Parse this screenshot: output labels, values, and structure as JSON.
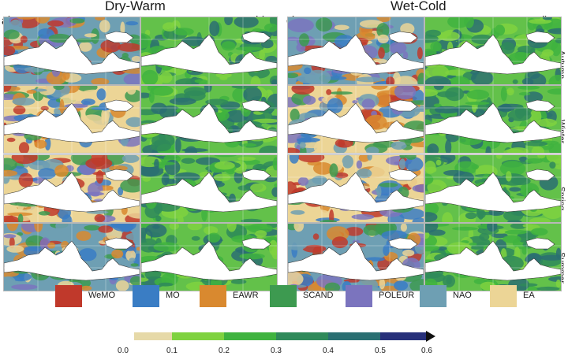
{
  "titles": {
    "left": "Dry-Warm",
    "right": "Wet-Cold"
  },
  "panel_labels": [
    "a)",
    "b)",
    "c)",
    "d)"
  ],
  "seasons": [
    "Autumn",
    "Winter",
    "Spring",
    "Summer"
  ],
  "legend": [
    {
      "name": "WeMO",
      "color": "#c0392b"
    },
    {
      "name": "MO",
      "color": "#3a7dc4"
    },
    {
      "name": "EAWR",
      "color": "#d9892f"
    },
    {
      "name": "SCAND",
      "color": "#3d9a50"
    },
    {
      "name": "POLEUR",
      "color": "#7b74be"
    },
    {
      "name": "NAO",
      "color": "#6e9fb3"
    },
    {
      "name": "EA",
      "color": "#ecd596"
    }
  ],
  "colorbar": {
    "ticks": [
      "0.0",
      "0.1",
      "0.2",
      "0.3",
      "0.4",
      "0.5",
      "0.6"
    ],
    "colors": [
      "#e6d9a8",
      "#7fd23f",
      "#3fb33f",
      "#2f8a5a",
      "#2a6f72",
      "#27307a"
    ]
  }
}
